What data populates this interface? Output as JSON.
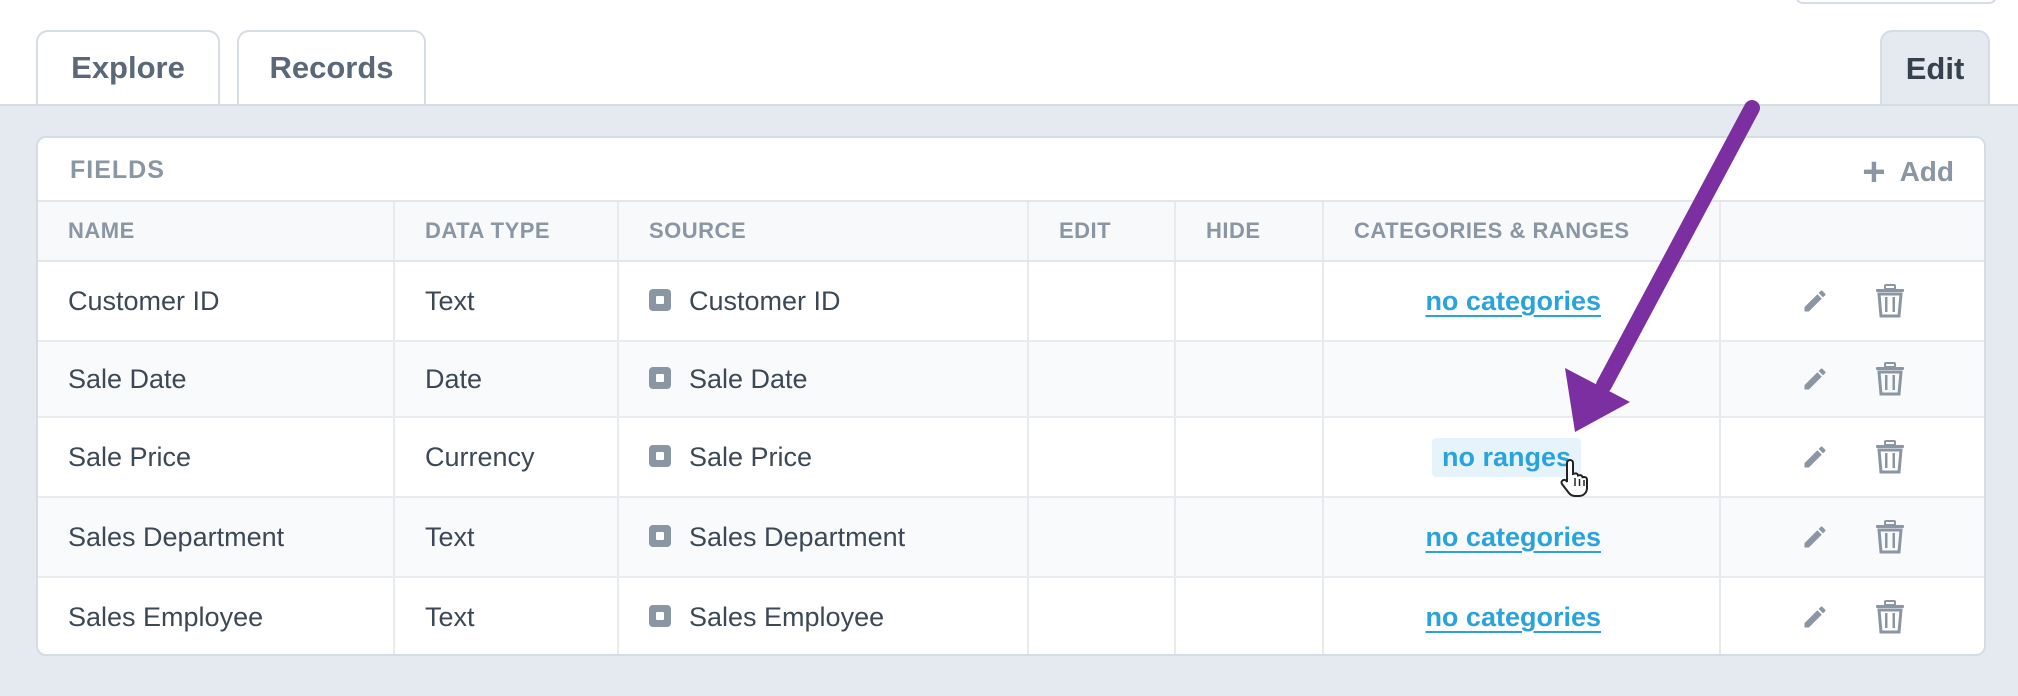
{
  "tabs": {
    "explore": "Explore",
    "records": "Records",
    "edit": "Edit"
  },
  "panel": {
    "title": "FIELDS",
    "add_label": "Add"
  },
  "columns": {
    "name": "NAME",
    "data_type": "DATA TYPE",
    "source": "SOURCE",
    "edit": "EDIT",
    "hide": "HIDE",
    "categories": "CATEGORIES & RANGES"
  },
  "rows": [
    {
      "name": "Customer ID",
      "type": "Text",
      "source": "Customer ID",
      "categories": "no categories"
    },
    {
      "name": "Sale Date",
      "type": "Date",
      "source": "Sale Date",
      "categories": ""
    },
    {
      "name": "Sale Price",
      "type": "Currency",
      "source": "Sale Price",
      "categories": "no ranges"
    },
    {
      "name": "Sales Department",
      "type": "Text",
      "source": "Sales Department",
      "categories": "no categories"
    },
    {
      "name": "Sales Employee",
      "type": "Text",
      "source": "Sales Employee",
      "categories": "no categories"
    }
  ],
  "icons": {
    "source": "field-source-icon",
    "edit": "pencil-icon",
    "delete": "trash-icon",
    "add": "plus-icon",
    "annotation": "arrow-annotation",
    "cursor": "hand-pointer-cursor"
  },
  "colors": {
    "link": "#29a3dc",
    "annotation_arrow": "#7b2fa0",
    "panel_background": "#e5eaf0"
  }
}
